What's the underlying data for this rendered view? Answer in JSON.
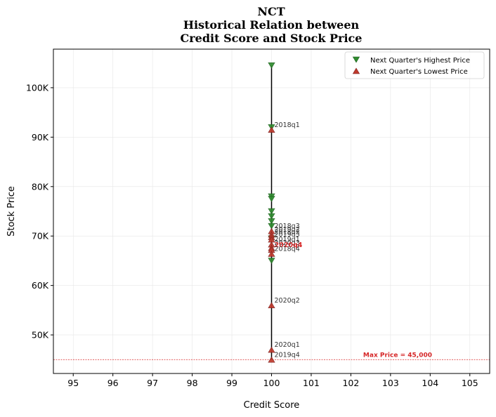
{
  "chart_data": {
    "type": "scatter",
    "title": [
      "NCT",
      "Historical Relation between",
      "Credit Score and Stock Price"
    ],
    "xlabel": "Credit Score",
    "ylabel": "Stock Price",
    "xlim": [
      94.5,
      105.5
    ],
    "ylim": [
      42200,
      107800
    ],
    "x_ticks": [
      95,
      96,
      97,
      98,
      99,
      100,
      101,
      102,
      103,
      104,
      105
    ],
    "y_ticks": [
      50000,
      60000,
      70000,
      80000,
      90000,
      100000
    ],
    "y_tick_labels": [
      "50K",
      "60K",
      "70K",
      "80K",
      "90K",
      "100K"
    ],
    "grid": true,
    "legend_position": "top-right",
    "series": [
      {
        "name": "Next Quarter's Highest Price",
        "marker": "triangle-down",
        "color": "#2e8b2e",
        "points": [
          {
            "x": 100,
            "y": 104500
          },
          {
            "x": 100,
            "y": 92000
          },
          {
            "x": 100,
            "y": 78000
          },
          {
            "x": 100,
            "y": 77500
          },
          {
            "x": 100,
            "y": 75000
          },
          {
            "x": 100,
            "y": 74000
          },
          {
            "x": 100,
            "y": 73000
          },
          {
            "x": 100,
            "y": 72000
          },
          {
            "x": 100,
            "y": 69500
          },
          {
            "x": 100,
            "y": 65000
          }
        ]
      },
      {
        "name": "Next Quarter's Lowest Price",
        "marker": "triangle-up",
        "color": "#c0392b",
        "points": [
          {
            "x": 100,
            "y": 91500,
            "label": "2018q1"
          },
          {
            "x": 100,
            "y": 71000,
            "label": "2018q3"
          },
          {
            "x": 100,
            "y": 70300,
            "label": "2019q2"
          },
          {
            "x": 100,
            "y": 69800,
            "label": "2018q2"
          },
          {
            "x": 100,
            "y": 69300,
            "label": "2019q3"
          },
          {
            "x": 100,
            "y": 68300,
            "label": "2019q1"
          },
          {
            "x": 100,
            "y": 67600,
            "label": "2020q3"
          },
          {
            "x": 100,
            "y": 67200,
            "label": "2020q4",
            "highlight": true
          },
          {
            "x": 100,
            "y": 66400,
            "label": "2018q4"
          },
          {
            "x": 100,
            "y": 56000,
            "label": "2020q2"
          },
          {
            "x": 100,
            "y": 47000,
            "label": "2020q1"
          },
          {
            "x": 100,
            "y": 45000,
            "label": "2019q4"
          }
        ]
      }
    ],
    "vertical_range": {
      "x": 100,
      "y_min": 45000,
      "y_max": 104500
    },
    "reference_line": {
      "y": 45000,
      "label": "Max Price = 45,000",
      "color": "#d62728"
    }
  }
}
